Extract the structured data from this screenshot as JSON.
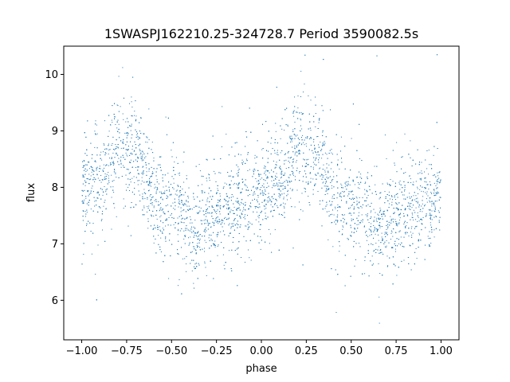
{
  "chart_data": {
    "type": "scatter",
    "title": "1SWASPJ162210.25-324728.7 Period 3590082.5s",
    "xlabel": "phase",
    "ylabel": "flux",
    "xlim": [
      -1.1,
      1.1
    ],
    "ylim": [
      5.3,
      10.5
    ],
    "xticks": [
      -1.0,
      -0.75,
      -0.5,
      -0.25,
      0.0,
      0.25,
      0.5,
      0.75,
      1.0
    ],
    "xtick_labels": [
      "−1.00",
      "−0.75",
      "−0.50",
      "−0.25",
      "0.00",
      "0.25",
      "0.50",
      "0.75",
      "1.00"
    ],
    "yticks": [
      6,
      7,
      8,
      9,
      10
    ],
    "ytick_labels": [
      "6",
      "7",
      "8",
      "9",
      "10"
    ],
    "grid": false,
    "series": [
      {
        "color": "#1f77b4",
        "marker": "point",
        "phase_range": [
          -1.0,
          1.0
        ],
        "mean_flux": 7.9,
        "band_spread": 0.45,
        "cluster_profile": [
          {
            "phase": -0.99,
            "flux": 7.9
          },
          {
            "phase": -0.85,
            "flux": 8.3
          },
          {
            "phase": -0.81,
            "flux": 8.7
          },
          {
            "phase": -0.7,
            "flux": 8.6
          },
          {
            "phase": -0.57,
            "flux": 7.7
          },
          {
            "phase": -0.45,
            "flux": 7.7
          },
          {
            "phase": -0.38,
            "flux": 7.2
          },
          {
            "phase": -0.2,
            "flux": 7.6
          },
          {
            "phase": 0.0,
            "flux": 7.9
          },
          {
            "phase": 0.15,
            "flux": 8.3
          },
          {
            "phase": 0.19,
            "flux": 8.7
          },
          {
            "phase": 0.3,
            "flux": 8.6
          },
          {
            "phase": 0.43,
            "flux": 7.7
          },
          {
            "phase": 0.55,
            "flux": 7.7
          },
          {
            "phase": 0.62,
            "flux": 7.2
          },
          {
            "phase": 0.8,
            "flux": 7.6
          },
          {
            "phase": 0.99,
            "flux": 7.9
          }
        ]
      }
    ]
  }
}
